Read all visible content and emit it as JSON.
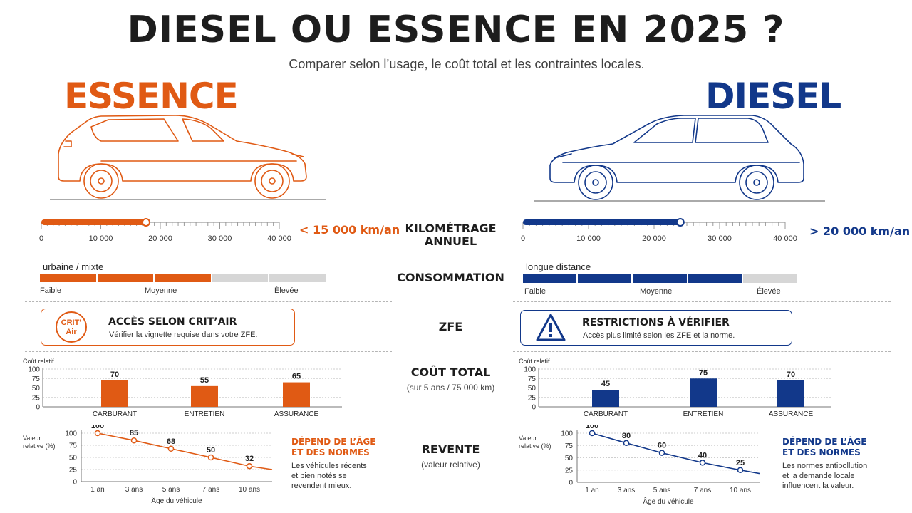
{
  "header": {
    "title": "DIESEL OU ESSENCE EN 2025 ?",
    "subtitle": "Comparer selon l’usage, le coût total et les contraintes locales."
  },
  "colors": {
    "essence": "#e05a14",
    "diesel": "#12388a",
    "neutral": "#d6d6d6"
  },
  "center": {
    "kilometrage": "KILOMÉTRAGE\nANNUEL",
    "consommation": "CONSOMMATION",
    "zfe": "ZFE",
    "cout_total": "COÛT TOTAL",
    "cout_total_sub": "(sur 5 ans / 75 000 km)",
    "revente": "REVENTE",
    "revente_sub": "(valeur relative)"
  },
  "km_scale": [
    "0",
    "10 000",
    "20 000",
    "30 000",
    "40 000"
  ],
  "consumption_levels": [
    "Faible",
    "Moyenne",
    "Élevée"
  ],
  "cost_axis": {
    "label": "Coût relatif",
    "ticks": [
      "100",
      "75",
      "50",
      "25",
      "0"
    ]
  },
  "resale_axis": {
    "ylabel_line1": "Valeur",
    "ylabel_line2": "relative (%)",
    "ticks": [
      "100",
      "75",
      "50",
      "25",
      "0"
    ],
    "x_ticks": [
      "1 an",
      "3 ans",
      "5 ans",
      "7 ans",
      "10 ans"
    ],
    "xlabel": "Âge du véhicule"
  },
  "essence": {
    "brand": "ESSENCE",
    "km_value": "< 15 000 km/an",
    "km_fill_fraction": 0.44,
    "consumption_label": "urbaine / mixte",
    "consumption_segments_filled": 3,
    "zfe": {
      "badge_line1": "CRIT’",
      "badge_line2": "Air",
      "title": "ACCÈS SELON CRIT’AIR",
      "desc": "Vérifier la vignette requise dans votre ZFE."
    },
    "resale_note": {
      "title_line1": "DÉPEND DE L’ÂGE",
      "title_line2": "ET DES NORMES",
      "text_line1": "Les véhicules récents",
      "text_line2": "et bien notés se",
      "text_line3": "revendent mieux."
    }
  },
  "diesel": {
    "brand": "DIESEL",
    "km_value": "> 20 000 km/an",
    "km_fill_fraction": 0.6,
    "consumption_label": "longue distance",
    "consumption_segments_filled": 4,
    "zfe": {
      "title": "RESTRICTIONS À VÉRIFIER",
      "desc": "Accès plus limité selon les ZFE et la norme."
    },
    "resale_note": {
      "title_line1": "DÉPEND DE L’ÂGE",
      "title_line2": "ET DES NORMES",
      "text_line1": "Les normes antipollution",
      "text_line2": "et la demande locale",
      "text_line3": "influencent la valeur."
    }
  },
  "chart_data": [
    {
      "type": "bar",
      "categories": [
        "CARBURANT",
        "ENTRETIEN",
        "ASSURANCE"
      ],
      "values": [
        70,
        55,
        65
      ],
      "ylabel": "Coût relatif",
      "ylim": [
        0,
        100
      ],
      "color": "#e05a14"
    },
    {
      "type": "bar",
      "categories": [
        "CARBURANT",
        "ENTRETIEN",
        "ASSURANCE"
      ],
      "values": [
        45,
        75,
        70
      ],
      "ylabel": "Coût relatif",
      "ylim": [
        0,
        100
      ],
      "color": "#12388a"
    },
    {
      "type": "line",
      "x": [
        "1 an",
        "3 ans",
        "5 ans",
        "7 ans",
        "10 ans"
      ],
      "values": [
        100,
        85,
        68,
        50,
        32
      ],
      "ylabel": "Valeur relative (%)",
      "xlabel": "Âge du véhicule",
      "ylim": [
        0,
        100
      ],
      "color": "#e05a14"
    },
    {
      "type": "line",
      "x": [
        "1 an",
        "3 ans",
        "5 ans",
        "7 ans",
        "10 ans"
      ],
      "values": [
        100,
        80,
        60,
        40,
        25
      ],
      "ylabel": "Valeur relative (%)",
      "xlabel": "Âge du véhicule",
      "ylim": [
        0,
        100
      ],
      "color": "#12388a"
    }
  ]
}
